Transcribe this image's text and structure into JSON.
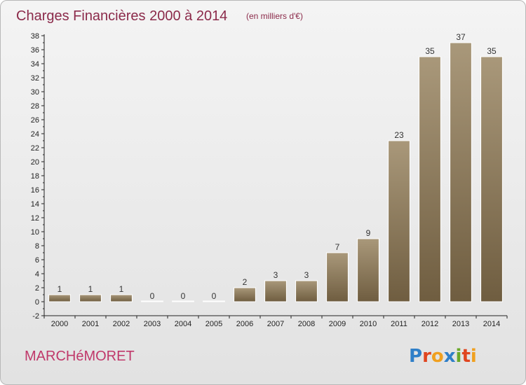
{
  "chart_data": {
    "type": "bar",
    "title": "Charges Financières 2000 à 2014",
    "subtitle": "(en milliers d'€)",
    "categories": [
      "2000",
      "2001",
      "2002",
      "2003",
      "2004",
      "2005",
      "2006",
      "2007",
      "2008",
      "2009",
      "2010",
      "2011",
      "2012",
      "2013",
      "2014"
    ],
    "values": [
      1,
      1,
      1,
      0,
      0,
      0,
      2,
      3,
      3,
      7,
      9,
      23,
      35,
      37,
      35
    ],
    "ylim": [
      -2,
      38
    ],
    "yticks": [
      -2,
      0,
      2,
      4,
      6,
      8,
      10,
      12,
      14,
      16,
      18,
      20,
      22,
      24,
      26,
      28,
      30,
      32,
      34,
      36,
      38
    ],
    "grid": false,
    "colors": {
      "bar_top": "#a9987a",
      "bar_bottom": "#6f5d40",
      "bar_stroke": "#ffffff"
    }
  },
  "footer": {
    "commune": "MARCHéMORET",
    "logo_letters": [
      {
        "ch": "P",
        "color": "#2f7fc8"
      },
      {
        "ch": "r",
        "color": "#e0451f"
      },
      {
        "ch": "o",
        "color": "#f0a020"
      },
      {
        "ch": "x",
        "color": "#2f7fc8"
      },
      {
        "ch": "i",
        "color": "#6aa82a"
      },
      {
        "ch": "t",
        "color": "#e0451f"
      },
      {
        "ch": "i",
        "color": "#f0a020"
      }
    ]
  }
}
